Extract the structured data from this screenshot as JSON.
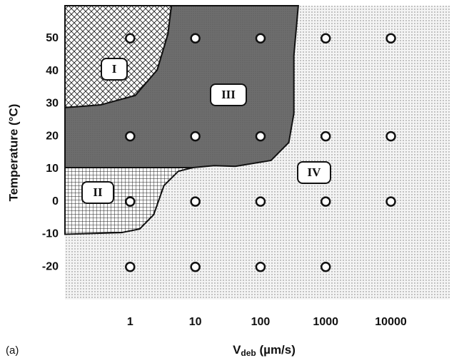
{
  "chart_data": {
    "type": "scatter",
    "xlabel": "V",
    "xlabel_sub": "deb",
    "xlabel_unit": " (µm/s)",
    "ylabel": "Temperature (°C)",
    "panel": "(a)",
    "log_x": true,
    "xlim": [
      0.1,
      80000
    ],
    "ylim": [
      -30,
      60
    ],
    "xticks": [
      1,
      10,
      100,
      1000,
      10000
    ],
    "yticks": [
      -20,
      -10,
      0,
      10,
      20,
      30,
      40,
      50
    ],
    "x": [
      1,
      10,
      100,
      1000,
      10000,
      1,
      10,
      100,
      1000,
      10000,
      1,
      10,
      100,
      1000,
      10000,
      1,
      10,
      100,
      1000
    ],
    "values": [
      50,
      50,
      50,
      50,
      50,
      20,
      20,
      20,
      20,
      20,
      0,
      0,
      0,
      0,
      0,
      -20,
      -20,
      -20,
      -20
    ],
    "regions": [
      {
        "label": "IV"
      },
      {
        "label": "I",
        "x": [
          0.1,
          4.3,
          3.8,
          2.6,
          1.2,
          0.35,
          0.1
        ],
        "y": [
          60,
          60,
          51.3,
          40.3,
          32.5,
          29.6,
          28.8
        ]
      },
      {
        "label": "III",
        "x": [
          4.3,
          380,
          325,
          325,
          272,
          145,
          41,
          19.5,
          9.2,
          3.3,
          0.1,
          0.1,
          0.35,
          1.2,
          2.6,
          3.8
        ],
        "y": [
          60,
          60,
          44.7,
          27,
          18.1,
          12.6,
          10.8,
          11,
          10.4,
          10.4,
          10.4,
          28.8,
          29.6,
          32.5,
          40.3,
          51.3
        ]
      },
      {
        "label": "II",
        "x": [
          0.1,
          9.2,
          5.5,
          3.3,
          2.3,
          1.4,
          0.74,
          0.1
        ],
        "y": [
          10.4,
          10.4,
          9.3,
          4.9,
          -4,
          -8.4,
          -9.5,
          -10
        ]
      }
    ]
  }
}
